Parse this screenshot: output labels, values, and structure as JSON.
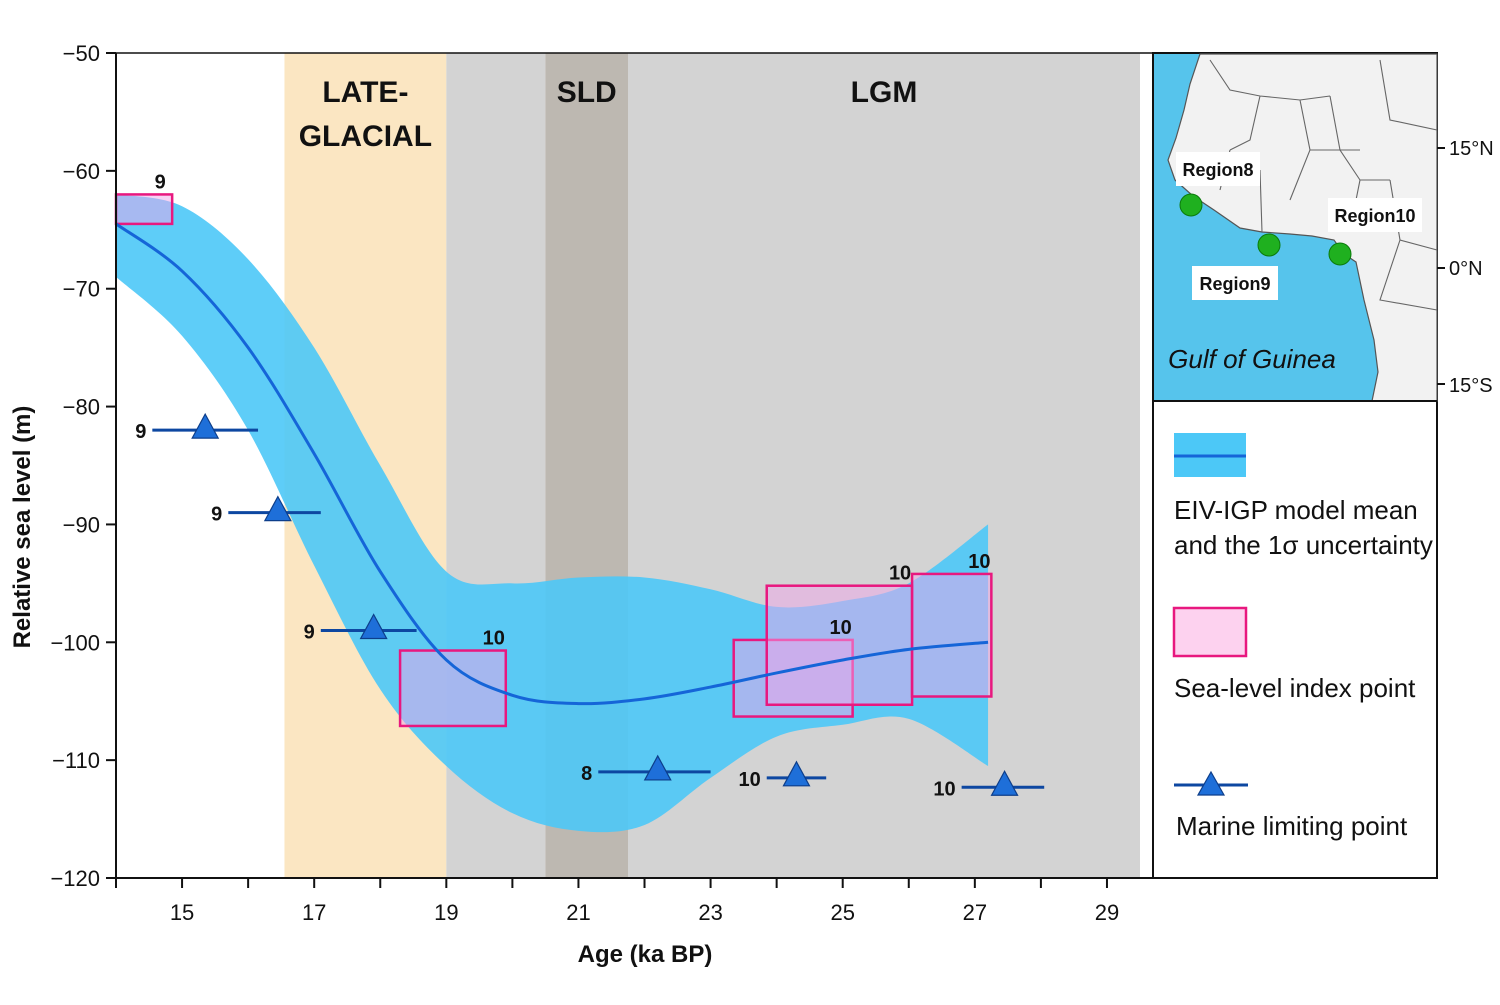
{
  "chart_data": {
    "type": "line",
    "xlabel": "Age (ka BP)",
    "ylabel": "Relative sea level (m)",
    "xlim": [
      14,
      29.5
    ],
    "ylim": [
      -120,
      -50
    ],
    "x_ticks": [
      15,
      17,
      19,
      21,
      23,
      25,
      27,
      29
    ],
    "y_ticks": [
      -50,
      -60,
      -70,
      -80,
      -90,
      -100,
      -110,
      -120
    ],
    "periods": [
      {
        "label": "LATE-",
        "label2": "GLACIAL",
        "from": 16.55,
        "to": 19.0,
        "color": "#fbe6c2"
      },
      {
        "label": "",
        "label2": "",
        "from": 19.0,
        "to": 20.5,
        "color": "#d3d3d3"
      },
      {
        "label": "SLD",
        "label2": "",
        "from": 20.5,
        "to": 21.75,
        "color": "#bdb8b1"
      },
      {
        "label": "LGM",
        "label2": "",
        "from": 21.75,
        "to": 29.5,
        "color": "#d3d3d3"
      }
    ],
    "series": [
      {
        "name": "EIV-IGP model mean",
        "x": [
          14.0,
          15.0,
          16.0,
          17.0,
          18.0,
          19.0,
          20.0,
          21.0,
          22.0,
          23.0,
          24.0,
          25.0,
          26.0,
          27.2
        ],
        "y": [
          -64.5,
          -68.5,
          -75.0,
          -84.0,
          -94.0,
          -101.5,
          -104.5,
          -105.2,
          -104.8,
          -103.8,
          -102.6,
          -101.5,
          -100.6,
          -100.0
        ],
        "lower": [
          -69.0,
          -74.0,
          -82.0,
          -93.5,
          -104.0,
          -110.5,
          -114.5,
          -116.0,
          -115.5,
          -111.5,
          -108.0,
          -107.0,
          -106.5,
          -110.5
        ],
        "upper": [
          -62.0,
          -63.0,
          -67.5,
          -75.0,
          -85.0,
          -94.0,
          -95.0,
          -94.5,
          -94.5,
          -95.5,
          -97.0,
          -96.5,
          -95.0,
          -90.0
        ],
        "color": "#1565d8",
        "band_color": "#4cc8f7"
      }
    ],
    "index_points": [
      {
        "label": "9",
        "x1": 14.0,
        "x2": 14.85,
        "y1": -62.0,
        "y2": -64.5
      },
      {
        "label": "10",
        "x1": 18.3,
        "x2": 19.9,
        "y1": -100.7,
        "y2": -107.1
      },
      {
        "label": "10",
        "x1": 23.35,
        "x2": 25.15,
        "y1": -99.8,
        "y2": -106.3
      },
      {
        "label": "10",
        "x1": 23.85,
        "x2": 26.05,
        "y1": -95.2,
        "y2": -105.3
      },
      {
        "label": "10",
        "x1": 26.05,
        "x2": 27.25,
        "y1": -94.2,
        "y2": -104.6
      }
    ],
    "limiting_points": [
      {
        "label": "8",
        "x": 22.2,
        "xmin": 21.3,
        "xmax": 23.0,
        "y": -111.0
      },
      {
        "label": "9",
        "x": 15.35,
        "xmin": 14.55,
        "xmax": 16.15,
        "y": -82.0
      },
      {
        "label": "9",
        "x": 16.45,
        "xmin": 15.7,
        "xmax": 17.1,
        "y": -89.0
      },
      {
        "label": "9",
        "x": 17.9,
        "xmin": 17.1,
        "xmax": 18.55,
        "y": -99.0
      },
      {
        "label": "10",
        "x": 24.3,
        "xmin": 23.85,
        "xmax": 24.75,
        "y": -111.5
      },
      {
        "label": "10",
        "x": 27.45,
        "xmin": 26.8,
        "xmax": 28.05,
        "y": -112.3
      }
    ]
  },
  "legend": {
    "model": {
      "line1": "EIV-IGP model mean",
      "line2": "and the 1σ uncertainty"
    },
    "index": "Sea-level index point",
    "limiting": "Marine limiting point"
  },
  "map": {
    "regions": [
      "Region8",
      "Region9",
      "Region10"
    ],
    "latitudes": [
      "15°N",
      "0°N",
      "15°S"
    ],
    "label": "Gulf of Guinea",
    "ocean_color": "#56c4ec",
    "land_color": "#f2f2f2"
  }
}
